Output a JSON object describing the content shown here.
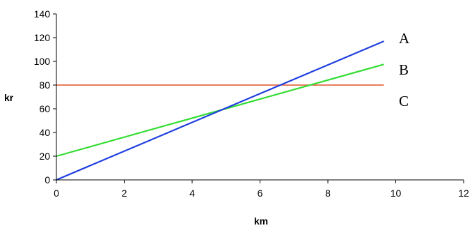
{
  "chart_data": {
    "type": "line",
    "xlabel": "km",
    "ylabel": "kr",
    "xlim": [
      0,
      12
    ],
    "ylim": [
      0,
      140
    ],
    "xticks": [
      "0",
      "2",
      "4",
      "6",
      "8",
      "10",
      "12"
    ],
    "yticks": [
      "0",
      "20",
      "40",
      "60",
      "80",
      "100",
      "120",
      "140"
    ],
    "grid": false,
    "series": [
      {
        "name": "A",
        "x": [
          0,
          9.65
        ],
        "y": [
          0,
          117
        ],
        "color": "#1f3fe0"
      },
      {
        "name": "B",
        "x": [
          0,
          9.65
        ],
        "y": [
          20,
          97.5
        ],
        "color": "#33dd33"
      },
      {
        "name": "C",
        "x": [
          0,
          9.65
        ],
        "y": [
          80,
          80
        ],
        "color": "#e0502a"
      }
    ]
  }
}
